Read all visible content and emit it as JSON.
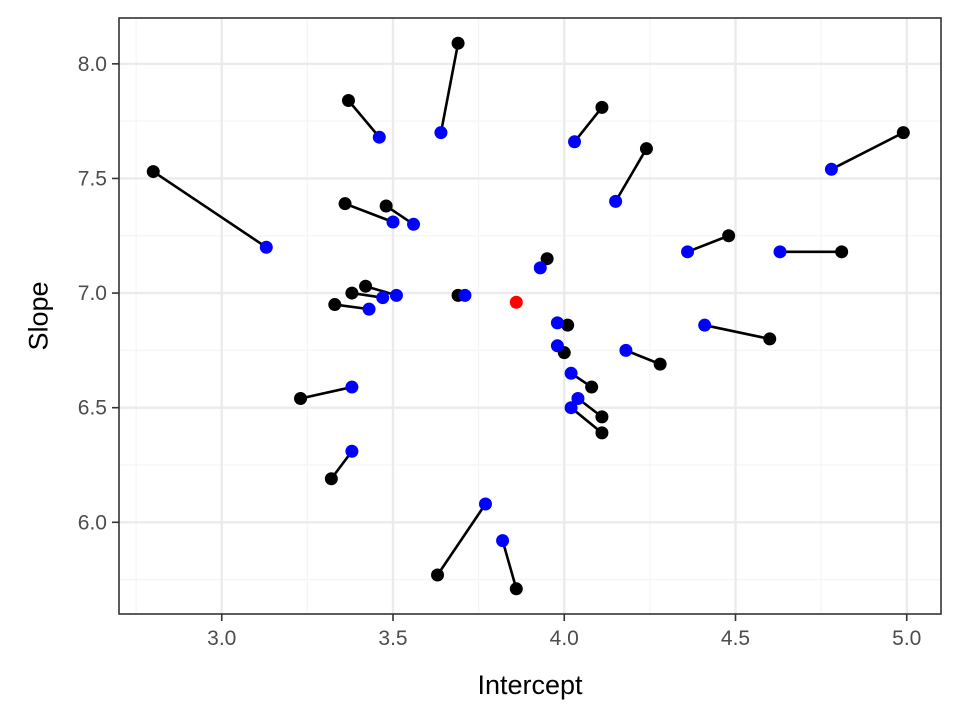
{
  "chart_data": {
    "type": "scatter",
    "title": "",
    "xlabel": "Intercept",
    "ylabel": "Slope",
    "xlim": [
      2.7,
      5.1
    ],
    "ylim": [
      5.6,
      8.2
    ],
    "x_ticks": [
      3.0,
      3.5,
      4.0,
      4.5,
      5.0
    ],
    "x_tick_labels": [
      "3.0",
      "3.5",
      "4.0",
      "4.5",
      "5.0"
    ],
    "y_ticks": [
      6.0,
      6.5,
      7.0,
      7.5,
      8.0
    ],
    "y_tick_labels": [
      "6.0",
      "6.5",
      "7.0",
      "7.5",
      "8.0"
    ],
    "grid": true,
    "legend": "none",
    "colors": {
      "original": "#000000",
      "shrunk": "#0000ff",
      "center": "#ff0000",
      "panel_border": "#333333",
      "grid_major": "#ebebeb",
      "grid_minor": "#f5f5f5"
    },
    "segments": [
      {
        "x0": 2.8,
        "y0": 7.53,
        "x1": 3.13,
        "y1": 7.2
      },
      {
        "x0": 3.37,
        "y0": 7.84,
        "x1": 3.46,
        "y1": 7.68
      },
      {
        "x0": 3.69,
        "y0": 8.09,
        "x1": 3.64,
        "y1": 7.7
      },
      {
        "x0": 4.11,
        "y0": 7.81,
        "x1": 4.03,
        "y1": 7.66
      },
      {
        "x0": 4.24,
        "y0": 7.63,
        "x1": 4.15,
        "y1": 7.4
      },
      {
        "x0": 4.99,
        "y0": 7.7,
        "x1": 4.78,
        "y1": 7.54
      },
      {
        "x0": 3.36,
        "y0": 7.39,
        "x1": 3.5,
        "y1": 7.31
      },
      {
        "x0": 3.48,
        "y0": 7.38,
        "x1": 3.56,
        "y1": 7.3
      },
      {
        "x0": 4.48,
        "y0": 7.25,
        "x1": 4.36,
        "y1": 7.18
      },
      {
        "x0": 4.81,
        "y0": 7.18,
        "x1": 4.63,
        "y1": 7.18
      },
      {
        "x0": 3.95,
        "y0": 7.15,
        "x1": 3.93,
        "y1": 7.11
      },
      {
        "x0": 3.42,
        "y0": 7.03,
        "x1": 3.51,
        "y1": 6.99
      },
      {
        "x0": 3.38,
        "y0": 7.0,
        "x1": 3.47,
        "y1": 6.98
      },
      {
        "x0": 3.33,
        "y0": 6.95,
        "x1": 3.43,
        "y1": 6.93
      },
      {
        "x0": 3.69,
        "y0": 6.99,
        "x1": 3.71,
        "y1": 6.99
      },
      {
        "x0": 4.01,
        "y0": 6.86,
        "x1": 3.98,
        "y1": 6.87
      },
      {
        "x0": 4.6,
        "y0": 6.8,
        "x1": 4.41,
        "y1": 6.86
      },
      {
        "x0": 4.0,
        "y0": 6.74,
        "x1": 3.98,
        "y1": 6.77
      },
      {
        "x0": 4.28,
        "y0": 6.69,
        "x1": 4.18,
        "y1": 6.75
      },
      {
        "x0": 4.08,
        "y0": 6.59,
        "x1": 4.02,
        "y1": 6.65
      },
      {
        "x0": 3.23,
        "y0": 6.54,
        "x1": 3.38,
        "y1": 6.59
      },
      {
        "x0": 4.11,
        "y0": 6.46,
        "x1": 4.04,
        "y1": 6.54
      },
      {
        "x0": 4.11,
        "y0": 6.39,
        "x1": 4.02,
        "y1": 6.5
      },
      {
        "x0": 3.32,
        "y0": 6.19,
        "x1": 3.38,
        "y1": 6.31
      },
      {
        "x0": 3.63,
        "y0": 5.77,
        "x1": 3.77,
        "y1": 6.08
      },
      {
        "x0": 3.86,
        "y0": 5.71,
        "x1": 3.82,
        "y1": 5.92
      }
    ],
    "center_point": {
      "x": 3.86,
      "y": 6.96
    }
  }
}
